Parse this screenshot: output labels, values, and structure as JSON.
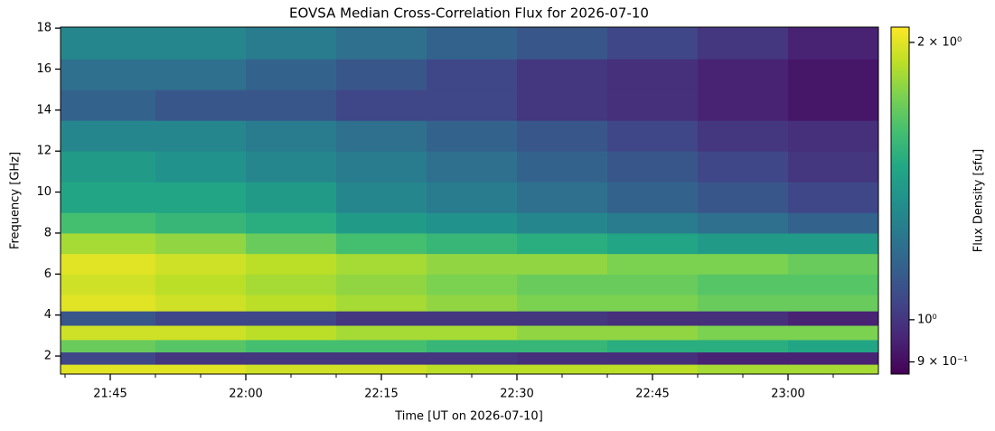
{
  "chart_data": {
    "type": "heatmap",
    "title": "EOVSA Median Cross-Correlation Flux for 2026-07-10",
    "xlabel": "Time [UT on 2026-07-10]",
    "ylabel": "Frequency [GHz]",
    "colorbar_label": "Flux Density [sfu]",
    "colormap": "viridis",
    "color_scale": "log",
    "xlim": [
      1299.5,
      1390
    ],
    "xticks": [
      {
        "value": 1305,
        "label": "21:45"
      },
      {
        "value": 1320,
        "label": "22:00"
      },
      {
        "value": 1335,
        "label": "22:15"
      },
      {
        "value": 1350,
        "label": "22:30"
      },
      {
        "value": 1365,
        "label": "22:45"
      },
      {
        "value": 1380,
        "label": "23:00"
      }
    ],
    "xminorticks": [
      1300,
      1310,
      1315,
      1325,
      1330,
      1340,
      1345,
      1355,
      1360,
      1370,
      1375,
      1385
    ],
    "ylim": [
      1.12,
      18.05
    ],
    "yticks": [
      2,
      4,
      6,
      8,
      10,
      12,
      14,
      16,
      18
    ],
    "clim": [
      0.873,
      2.078
    ],
    "cticks": [
      {
        "value": 2,
        "label": "2 × 10⁰"
      },
      {
        "value": 1,
        "label": "10⁰"
      },
      {
        "value": 0.9,
        "label": "9 × 10⁻¹"
      }
    ],
    "time_edges": [
      1299.5,
      1310,
      1320,
      1330,
      1340,
      1350,
      1360,
      1370,
      1380,
      1390
    ],
    "freq_edges": [
      1.12,
      1.6,
      2.2,
      2.8,
      3.5,
      4.2,
      5,
      6,
      7,
      8,
      9,
      10.5,
      12,
      13.5,
      15,
      16.5,
      18.05
    ],
    "values": [
      [
        2.0,
        2.0,
        1.95,
        1.95,
        1.9,
        1.9,
        1.9,
        1.85,
        1.85
      ],
      [
        1.05,
        1.0,
        1.0,
        1.0,
        1.0,
        0.98,
        0.98,
        0.95,
        0.95
      ],
      [
        1.7,
        1.65,
        1.6,
        1.6,
        1.55,
        1.55,
        1.5,
        1.5,
        1.45
      ],
      [
        1.95,
        1.95,
        1.9,
        1.85,
        1.85,
        1.8,
        1.8,
        1.75,
        1.75
      ],
      [
        1.1,
        1.05,
        1.05,
        1.0,
        1.0,
        1.0,
        0.98,
        0.98,
        0.95
      ],
      [
        2.0,
        1.95,
        1.9,
        1.85,
        1.8,
        1.75,
        1.75,
        1.7,
        1.7
      ],
      [
        1.95,
        1.9,
        1.85,
        1.8,
        1.75,
        1.7,
        1.7,
        1.65,
        1.65
      ],
      [
        2.0,
        1.95,
        1.9,
        1.85,
        1.8,
        1.8,
        1.75,
        1.75,
        1.7
      ],
      [
        1.85,
        1.8,
        1.7,
        1.6,
        1.55,
        1.5,
        1.45,
        1.4,
        1.4
      ],
      [
        1.6,
        1.55,
        1.5,
        1.4,
        1.35,
        1.3,
        1.25,
        1.2,
        1.15
      ],
      [
        1.45,
        1.45,
        1.4,
        1.3,
        1.25,
        1.2,
        1.15,
        1.1,
        1.05
      ],
      [
        1.4,
        1.35,
        1.3,
        1.25,
        1.2,
        1.15,
        1.1,
        1.05,
        1.0
      ],
      [
        1.3,
        1.3,
        1.25,
        1.2,
        1.15,
        1.1,
        1.05,
        1.0,
        0.98
      ],
      [
        1.15,
        1.1,
        1.1,
        1.05,
        1.05,
        1.0,
        0.98,
        0.95,
        0.92
      ],
      [
        1.2,
        1.2,
        1.15,
        1.1,
        1.05,
        1.0,
        0.98,
        0.95,
        0.92
      ],
      [
        1.3,
        1.3,
        1.25,
        1.2,
        1.15,
        1.1,
        1.05,
        1.0,
        0.95
      ]
    ]
  }
}
